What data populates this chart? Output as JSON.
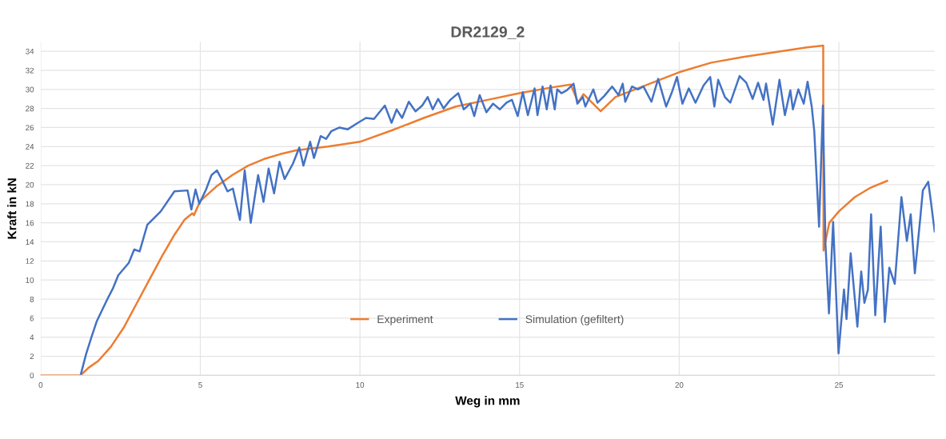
{
  "chart_data": {
    "type": "line",
    "title": "DR2129_2",
    "xlabel": "Weg in mm",
    "ylabel": "Kraft in kN",
    "xlim": [
      0,
      28
    ],
    "xticks": [
      0,
      5,
      10,
      15,
      20,
      25
    ],
    "ylim": [
      0,
      35
    ],
    "yticks": [
      0,
      2,
      4,
      6,
      8,
      10,
      12,
      14,
      16,
      18,
      20,
      22,
      24,
      26,
      28,
      30,
      32,
      34
    ],
    "grid": true,
    "legend": "bottom",
    "marker": "none",
    "line_style": "solid",
    "series": [
      {
        "name": "Experiment",
        "color": "#ed7d31",
        "x": [
          0,
          1.25,
          1.5,
          1.8,
          2.2,
          2.6,
          3.0,
          3.4,
          3.8,
          4.2,
          4.5,
          4.75,
          4.8,
          5.0,
          5.5,
          6.0,
          6.5,
          7.0,
          7.5,
          8.0,
          9.0,
          10.0,
          11.0,
          12.0,
          13.0,
          14.0,
          15.0,
          16.0,
          16.6,
          16.84,
          17.0,
          17.54,
          18.0,
          19.0,
          20.0,
          21.0,
          22.0,
          23.0,
          24.0,
          24.51,
          24.52,
          24.7,
          25.0,
          25.5,
          26.0,
          26.51
        ],
        "values": [
          0,
          0,
          0.8,
          1.5,
          3,
          5,
          7.5,
          10,
          12.5,
          14.8,
          16.3,
          17,
          16.8,
          18.3,
          19.8,
          21,
          22,
          22.7,
          23.2,
          23.6,
          24,
          24.5,
          25.7,
          27,
          28.2,
          28.9,
          29.6,
          30.2,
          30.5,
          28.6,
          29.5,
          27.7,
          29.2,
          30.5,
          31.8,
          32.8,
          33.4,
          33.9,
          34.4,
          34.6,
          13.1,
          16,
          17.2,
          18.7,
          19.7,
          20.4
        ]
      },
      {
        "name": "Simulation (gefiltert)",
        "color": "#4472c4",
        "x": [
          1.25,
          1.42,
          1.59,
          1.76,
          2.09,
          2.26,
          2.43,
          2.76,
          2.93,
          3.1,
          3.34,
          3.76,
          4.19,
          4.6,
          4.72,
          4.85,
          4.97,
          5.18,
          5.35,
          5.52,
          5.68,
          5.85,
          6.02,
          6.24,
          6.39,
          6.58,
          6.81,
          6.98,
          7.14,
          7.31,
          7.48,
          7.64,
          7.9,
          8.1,
          8.23,
          8.44,
          8.56,
          8.77,
          8.94,
          9.1,
          9.36,
          9.61,
          9.94,
          10.19,
          10.44,
          10.78,
          10.99,
          11.15,
          11.32,
          11.53,
          11.74,
          11.95,
          12.12,
          12.28,
          12.45,
          12.62,
          12.83,
          13.08,
          13.25,
          13.46,
          13.58,
          13.75,
          13.96,
          14.17,
          14.38,
          14.59,
          14.76,
          14.94,
          15.1,
          15.26,
          15.47,
          15.56,
          15.72,
          15.85,
          15.97,
          16.1,
          16.18,
          16.31,
          16.48,
          16.69,
          16.81,
          16.98,
          17.06,
          17.31,
          17.44,
          17.65,
          17.9,
          18.1,
          18.23,
          18.31,
          18.52,
          18.71,
          18.88,
          19.13,
          19.34,
          19.59,
          19.76,
          19.93,
          20.1,
          20.3,
          20.51,
          20.76,
          20.97,
          21.1,
          21.22,
          21.43,
          21.6,
          21.89,
          22.1,
          22.3,
          22.47,
          22.64,
          22.72,
          22.93,
          23.14,
          23.31,
          23.48,
          23.56,
          23.73,
          23.9,
          24.02,
          24.15,
          24.23,
          24.38,
          24.5,
          24.58,
          24.69,
          24.82,
          24.99,
          25.16,
          25.24,
          25.37,
          25.58,
          25.7,
          25.8,
          25.91,
          26.01,
          26.14,
          26.31,
          26.44,
          26.58,
          26.75,
          26.96,
          27.13,
          27.25,
          27.38,
          27.55,
          27.63,
          27.8,
          27.88,
          28.0
        ],
        "values": [
          0,
          2.2,
          4,
          5.7,
          8,
          9.1,
          10.5,
          11.8,
          13.2,
          13,
          15.8,
          17.2,
          19.3,
          19.4,
          17.4,
          19.5,
          18,
          19.5,
          21,
          21.5,
          20.5,
          19.3,
          19.6,
          16.3,
          21.5,
          16,
          21,
          18.2,
          21.7,
          19.1,
          22.4,
          20.6,
          22.2,
          23.9,
          22,
          24.5,
          22.8,
          25.1,
          24.8,
          25.6,
          26,
          25.8,
          26.5,
          27,
          26.9,
          28.3,
          26.5,
          27.9,
          27,
          28.7,
          27.7,
          28.3,
          29.2,
          27.9,
          29,
          28,
          28.9,
          29.6,
          27.9,
          28.5,
          27.2,
          29.4,
          27.6,
          28.5,
          27.9,
          28.6,
          28.9,
          27.2,
          29.7,
          27.3,
          30.1,
          27.3,
          30.3,
          27.9,
          30.4,
          27.9,
          30,
          29.6,
          29.9,
          30.6,
          28.5,
          29.2,
          28.2,
          30,
          28.6,
          29.3,
          30.3,
          29.4,
          30.6,
          28.7,
          30.3,
          30,
          30.3,
          28.7,
          31.1,
          28.2,
          29.6,
          31.3,
          28.5,
          30.1,
          28.6,
          30.4,
          31.3,
          28.2,
          31,
          29.2,
          28.6,
          31.4,
          30.7,
          29,
          30.7,
          28.9,
          30.6,
          26.3,
          31,
          27.3,
          29.9,
          27.9,
          30,
          28.5,
          30.8,
          28.2,
          25.6,
          15.6,
          28.3,
          13.8,
          6.5,
          16.1,
          2.3,
          9,
          5.9,
          12.8,
          5.1,
          10.9,
          7.6,
          9,
          16.9,
          6.3,
          15.6,
          5.6,
          11.3,
          9.6,
          18.7,
          14.1,
          16.9,
          10.7,
          16.5,
          19.4,
          20.3,
          18.3,
          15.1
        ]
      }
    ]
  }
}
